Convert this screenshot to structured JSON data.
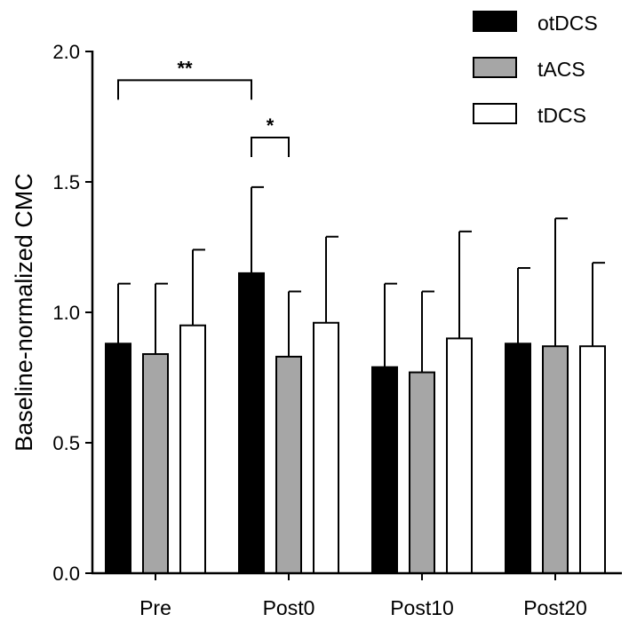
{
  "chart_data": {
    "type": "bar",
    "title": "",
    "xlabel": "",
    "ylabel": "Baseline-normalized CMC",
    "ylim": [
      0,
      2.0
    ],
    "yticks": [
      "0.0",
      "0.5",
      "1.0",
      "1.5",
      "2.0"
    ],
    "ytick_values": [
      0,
      0.5,
      1.0,
      1.5,
      2.0
    ],
    "categories": [
      "Pre",
      "Post0",
      "Post10",
      "Post20"
    ],
    "legend_position": "top-right",
    "series": [
      {
        "name": "otDCS",
        "color": "#000000",
        "values": [
          0.88,
          1.15,
          0.79,
          0.88
        ],
        "errors": [
          0.23,
          0.33,
          0.32,
          0.29
        ]
      },
      {
        "name": "tACS",
        "color": "#a6a6a6",
        "values": [
          0.84,
          0.83,
          0.77,
          0.87
        ],
        "errors": [
          0.27,
          0.25,
          0.31,
          0.49
        ]
      },
      {
        "name": "tDCS",
        "color": "#ffffff",
        "values": [
          0.95,
          0.96,
          0.9,
          0.87
        ],
        "errors": [
          0.29,
          0.33,
          0.41,
          0.32
        ]
      }
    ],
    "significance": [
      {
        "label": "**",
        "from": {
          "category": "Pre",
          "series": "otDCS"
        },
        "to": {
          "category": "Post0",
          "series": "otDCS"
        },
        "level": 1.89
      },
      {
        "label": "*",
        "from": {
          "category": "Post0",
          "series": "otDCS"
        },
        "to": {
          "category": "Post0",
          "series": "tACS"
        },
        "level": 1.67
      }
    ]
  }
}
